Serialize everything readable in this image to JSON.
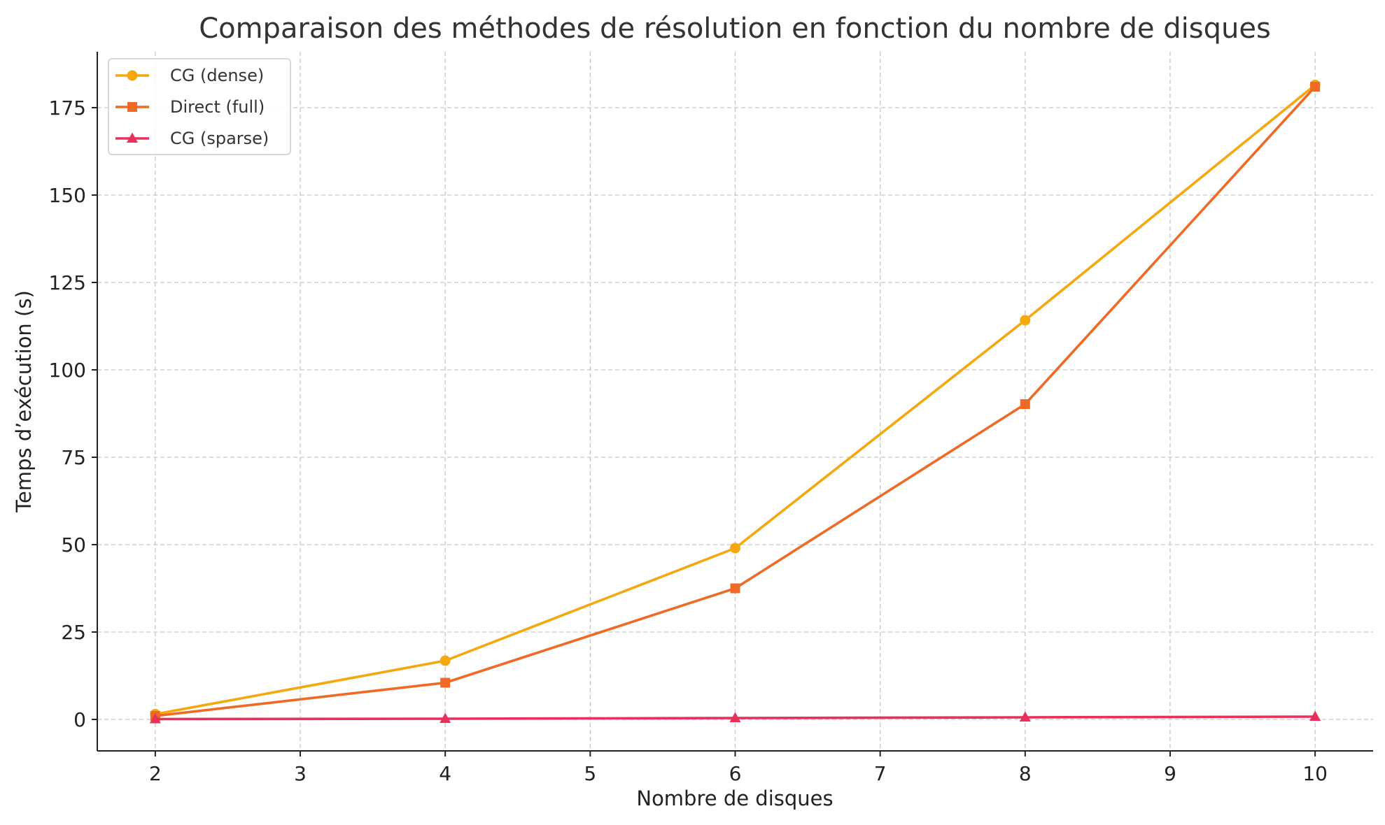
{
  "chart_data": {
    "type": "line",
    "title": "Comparaison des méthodes de résolution en fonction du nombre de disques",
    "xlabel": "Nombre de disques",
    "ylabel": "Temps d’exécution (s)",
    "x": [
      2,
      4,
      6,
      8,
      10
    ],
    "xlim": [
      1.6,
      10.4
    ],
    "ylim": [
      -9,
      191
    ],
    "xticks": [
      2,
      3,
      4,
      5,
      6,
      7,
      8,
      9,
      10
    ],
    "yticks": [
      0,
      25,
      50,
      75,
      100,
      125,
      150,
      175
    ],
    "grid": true,
    "legend_position": "top-left",
    "series": [
      {
        "name": "CG (dense)",
        "values": [
          1.5,
          16.8,
          49,
          114.2,
          181.5
        ],
        "color": "#F5A70E",
        "marker": "circle"
      },
      {
        "name": "Direct (full)",
        "values": [
          1.0,
          10.5,
          37.5,
          90.2,
          181.0
        ],
        "color": "#EE6A25",
        "marker": "square"
      },
      {
        "name": "CG (sparse)",
        "values": [
          0.1,
          0.2,
          0.4,
          0.6,
          0.8
        ],
        "color": "#E8305A",
        "marker": "triangle"
      }
    ]
  }
}
